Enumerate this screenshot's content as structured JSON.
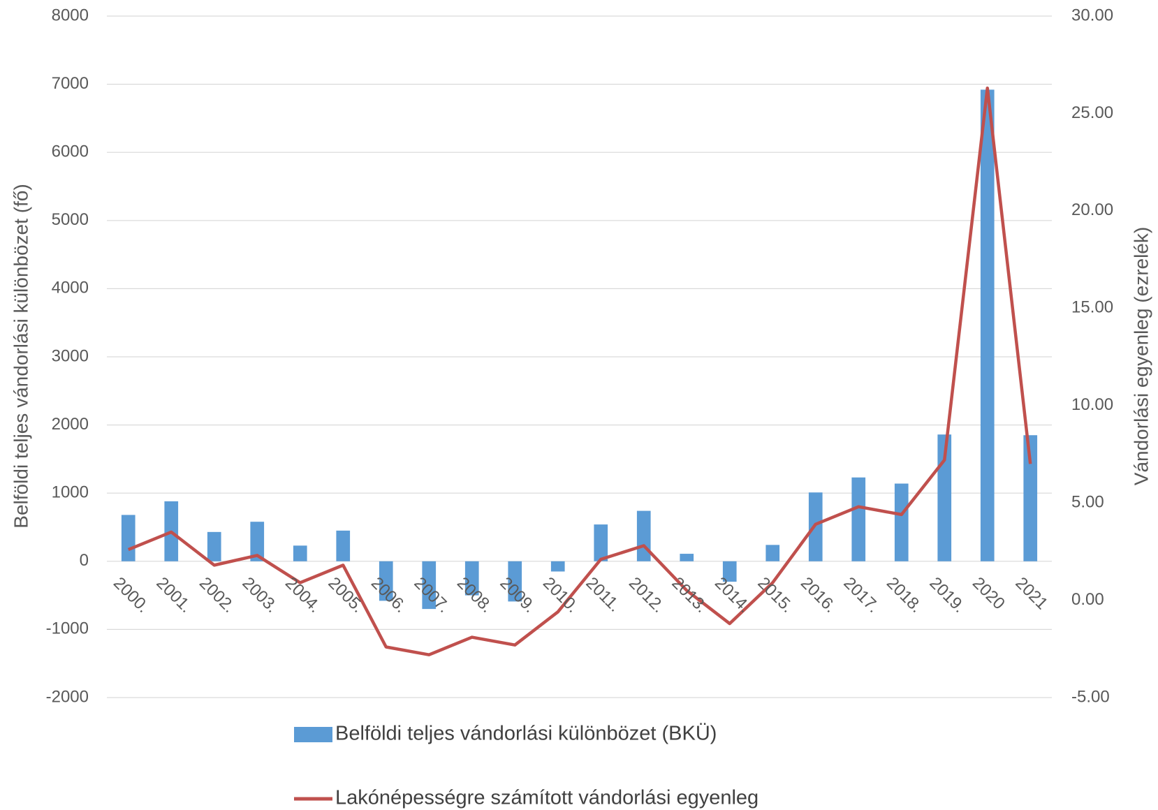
{
  "chart_data": {
    "type": "bar+line",
    "categories": [
      "2000.",
      "2001.",
      "2002.",
      "2003.",
      "2004.",
      "2005.",
      "2006.",
      "2007.",
      "2008.",
      "2009.",
      "2010.",
      "2011.",
      "2012.",
      "2013.",
      "2014.",
      "2015.",
      "2016.",
      "2017.",
      "2018.",
      "2019.",
      "2020",
      "2021"
    ],
    "series": [
      {
        "name": "Belföldi teljes vándorlási különbözet (BKÜ)",
        "type": "bar",
        "color": "#5b9bd5",
        "values": [
          680,
          880,
          430,
          580,
          230,
          450,
          -580,
          -700,
          -500,
          -590,
          -150,
          540,
          740,
          110,
          -300,
          240,
          1010,
          1230,
          1140,
          1860,
          6920,
          1850
        ]
      },
      {
        "name": "Lakónépességre számított vándorlási egyenleg",
        "type": "line",
        "color": "#c0504d",
        "axis": "y2",
        "values": [
          2.6,
          3.5,
          1.8,
          2.3,
          0.9,
          1.8,
          -2.4,
          -2.8,
          -1.9,
          -2.3,
          -0.6,
          2.1,
          2.8,
          0.5,
          -1.2,
          0.9,
          3.9,
          4.8,
          4.4,
          7.2,
          26.3,
          7.0
        ]
      }
    ],
    "ylabel": "Belföldi teljes vándorlási különbözet (fő)",
    "y2label": "Vándorlási egyenleg (ezrelék)",
    "ylim": [
      -2000,
      8000
    ],
    "yticks": [
      -2000,
      -1000,
      0,
      1000,
      2000,
      3000,
      4000,
      5000,
      6000,
      7000,
      8000
    ],
    "y2lim": [
      -5,
      30
    ],
    "y2ticks": [
      {
        "value": -5,
        "label": "-5.00"
      },
      {
        "value": 0,
        "label": "0.00"
      },
      {
        "value": 5,
        "label": "5.00"
      },
      {
        "value": 10,
        "label": "10.00"
      },
      {
        "value": 15,
        "label": "15.00"
      },
      {
        "value": 20,
        "label": "20.00"
      },
      {
        "value": 25,
        "label": "25.00"
      },
      {
        "value": 30,
        "label": "30.00"
      }
    ],
    "grid": true,
    "legend": "bottom"
  }
}
